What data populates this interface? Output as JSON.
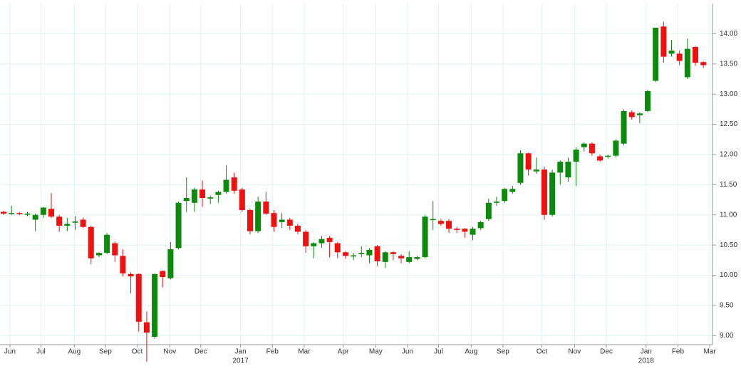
{
  "chart_data": {
    "type": "candlestick",
    "up_color": "#0b8a0b",
    "down_color": "#f01010",
    "grid": true,
    "ylim": [
      8.85,
      14.5
    ],
    "yticks": [
      {
        "value": 9,
        "label": "9.00"
      },
      {
        "value": 9.5,
        "label": "9.50"
      },
      {
        "value": 10,
        "label": "10.00"
      },
      {
        "value": 10.5,
        "label": "10.50"
      },
      {
        "value": 11,
        "label": "11.00"
      },
      {
        "value": 11.5,
        "label": "11.50"
      },
      {
        "value": 12,
        "label": "12.00"
      },
      {
        "value": 12.5,
        "label": "12.50"
      },
      {
        "value": 13,
        "label": "13.00"
      },
      {
        "value": 13.5,
        "label": "13.50"
      },
      {
        "value": 14,
        "label": "14.00"
      }
    ],
    "xlim": [
      -0.45,
      89.15
    ],
    "xticks": [
      {
        "value": 0.8,
        "label": "Jun"
      },
      {
        "value": 4.7,
        "label": "Jul"
      },
      {
        "value": 8.9,
        "label": "Aug"
      },
      {
        "value": 12.8,
        "label": "Sep"
      },
      {
        "value": 16.8,
        "label": "Oct"
      },
      {
        "value": 20.9,
        "label": "Nov"
      },
      {
        "value": 24.8,
        "label": "Dec"
      },
      {
        "value": 29.8,
        "label": "Jan"
      },
      {
        "value": 33.8,
        "label": "Feb"
      },
      {
        "value": 37.8,
        "label": "Mar"
      },
      {
        "value": 42.7,
        "label": "Apr"
      },
      {
        "value": 46.8,
        "label": "May"
      },
      {
        "value": 50.8,
        "label": "Jun"
      },
      {
        "value": 54.7,
        "label": "Jul"
      },
      {
        "value": 58.8,
        "label": "Aug"
      },
      {
        "value": 62.8,
        "label": "Sep"
      },
      {
        "value": 67.7,
        "label": "Oct"
      },
      {
        "value": 71.8,
        "label": "Nov"
      },
      {
        "value": 75.8,
        "label": "Dec"
      },
      {
        "value": 80.8,
        "label": "Jan"
      },
      {
        "value": 84.8,
        "label": "Feb"
      },
      {
        "value": 88.8,
        "label": "Mar"
      }
    ],
    "year_labels": [
      {
        "value": 29.8,
        "label": "2017"
      },
      {
        "value": 80.8,
        "label": "2018"
      }
    ],
    "open": [
      11.05,
      11.02,
      11.03,
      11.02,
      10.92,
      11.0,
      11.1,
      10.97,
      10.82,
      10.87,
      10.92,
      10.8,
      10.33,
      10.37,
      10.53,
      10.32,
      10.02,
      10.02,
      9.22,
      8.98,
      10.07,
      9.95,
      10.45,
      11.23,
      11.2,
      11.42,
      11.27,
      11.33,
      11.38,
      11.62,
      11.42,
      11.08,
      10.73,
      11.22,
      11.03,
      10.88,
      10.92,
      10.82,
      10.72,
      10.48,
      10.53,
      10.62,
      10.53,
      10.38,
      10.31,
      10.35,
      10.33,
      10.48,
      10.22,
      10.38,
      10.32,
      10.22,
      10.27,
      10.3,
      10.92,
      10.9,
      10.9,
      10.77,
      10.77,
      10.67,
      10.78,
      10.93,
      11.2,
      11.23,
      11.38,
      11.53,
      12.02,
      11.72,
      11.75,
      11.0,
      11.7,
      11.62,
      11.88,
      12.12,
      12.18,
      11.97,
      11.97,
      11.98,
      12.18,
      12.7,
      12.65,
      12.72,
      13.22,
      14.12,
      13.67,
      13.67,
      13.28,
      13.78,
      13.53
    ],
    "high": [
      11.07,
      11.15,
      11.05,
      11.05,
      11.02,
      11.13,
      11.36,
      11.0,
      10.95,
      10.98,
      10.95,
      10.82,
      10.38,
      10.7,
      10.56,
      10.43,
      10.05,
      10.03,
      9.4,
      10.03,
      10.08,
      10.55,
      11.22,
      11.62,
      11.45,
      11.57,
      11.32,
      11.4,
      11.82,
      11.7,
      11.45,
      11.1,
      11.3,
      11.38,
      11.08,
      11.03,
      10.95,
      10.85,
      10.75,
      10.55,
      10.65,
      10.65,
      10.55,
      10.4,
      10.37,
      10.48,
      10.45,
      10.5,
      10.4,
      10.4,
      10.35,
      10.4,
      10.32,
      11.0,
      11.23,
      10.93,
      10.93,
      10.8,
      10.78,
      10.8,
      10.9,
      11.27,
      11.3,
      11.45,
      11.48,
      12.07,
      12.03,
      11.95,
      11.8,
      11.75,
      11.9,
      11.95,
      12.12,
      12.2,
      12.2,
      12.0,
      12.0,
      12.25,
      12.75,
      12.73,
      12.7,
      13.07,
      14.1,
      14.2,
      13.9,
      13.72,
      13.92,
      13.8,
      13.55
    ],
    "low": [
      11.0,
      11.0,
      11.0,
      10.98,
      10.73,
      10.95,
      10.95,
      10.72,
      10.73,
      10.75,
      10.78,
      10.18,
      10.3,
      10.35,
      10.22,
      9.98,
      9.7,
      9.07,
      8.57,
      8.95,
      9.8,
      9.93,
      10.43,
      11.05,
      11.05,
      11.13,
      11.18,
      11.2,
      11.35,
      11.35,
      11.05,
      10.68,
      10.7,
      11.0,
      10.72,
      10.78,
      10.75,
      10.68,
      10.37,
      10.28,
      10.45,
      10.3,
      10.28,
      10.27,
      10.25,
      10.3,
      10.2,
      10.15,
      10.12,
      10.25,
      10.2,
      10.2,
      10.25,
      10.28,
      10.75,
      10.82,
      10.7,
      10.7,
      10.62,
      10.58,
      10.75,
      10.9,
      11.15,
      11.2,
      11.35,
      11.5,
      11.65,
      11.68,
      10.92,
      10.97,
      11.5,
      11.55,
      11.48,
      12.05,
      11.98,
      11.88,
      11.93,
      11.95,
      12.15,
      12.58,
      12.52,
      12.7,
      13.2,
      13.52,
      13.62,
      13.48,
      13.25,
      13.47,
      13.43
    ],
    "close": [
      11.02,
      11.03,
      11.02,
      11.02,
      11.0,
      11.12,
      10.97,
      10.82,
      10.85,
      10.89,
      10.8,
      10.28,
      10.37,
      10.67,
      10.33,
      10.03,
      9.98,
      9.23,
      9.05,
      10.02,
      9.97,
      10.43,
      11.2,
      11.28,
      11.42,
      11.28,
      11.29,
      11.38,
      11.58,
      11.4,
      11.08,
      10.73,
      11.22,
      11.02,
      10.8,
      10.92,
      10.82,
      10.72,
      10.48,
      10.53,
      10.6,
      10.55,
      10.38,
      10.32,
      10.33,
      10.37,
      10.42,
      10.23,
      10.38,
      10.35,
      10.28,
      10.3,
      10.3,
      10.97,
      10.93,
      10.85,
      10.77,
      10.75,
      10.72,
      10.77,
      10.88,
      11.2,
      11.22,
      11.43,
      11.43,
      12.02,
      11.75,
      11.75,
      11.0,
      11.7,
      11.88,
      11.88,
      12.08,
      12.18,
      12.02,
      11.9,
      11.98,
      12.23,
      12.72,
      12.62,
      12.68,
      13.05,
      14.1,
      13.62,
      13.72,
      13.55,
      13.75,
      13.52,
      13.48
    ]
  }
}
